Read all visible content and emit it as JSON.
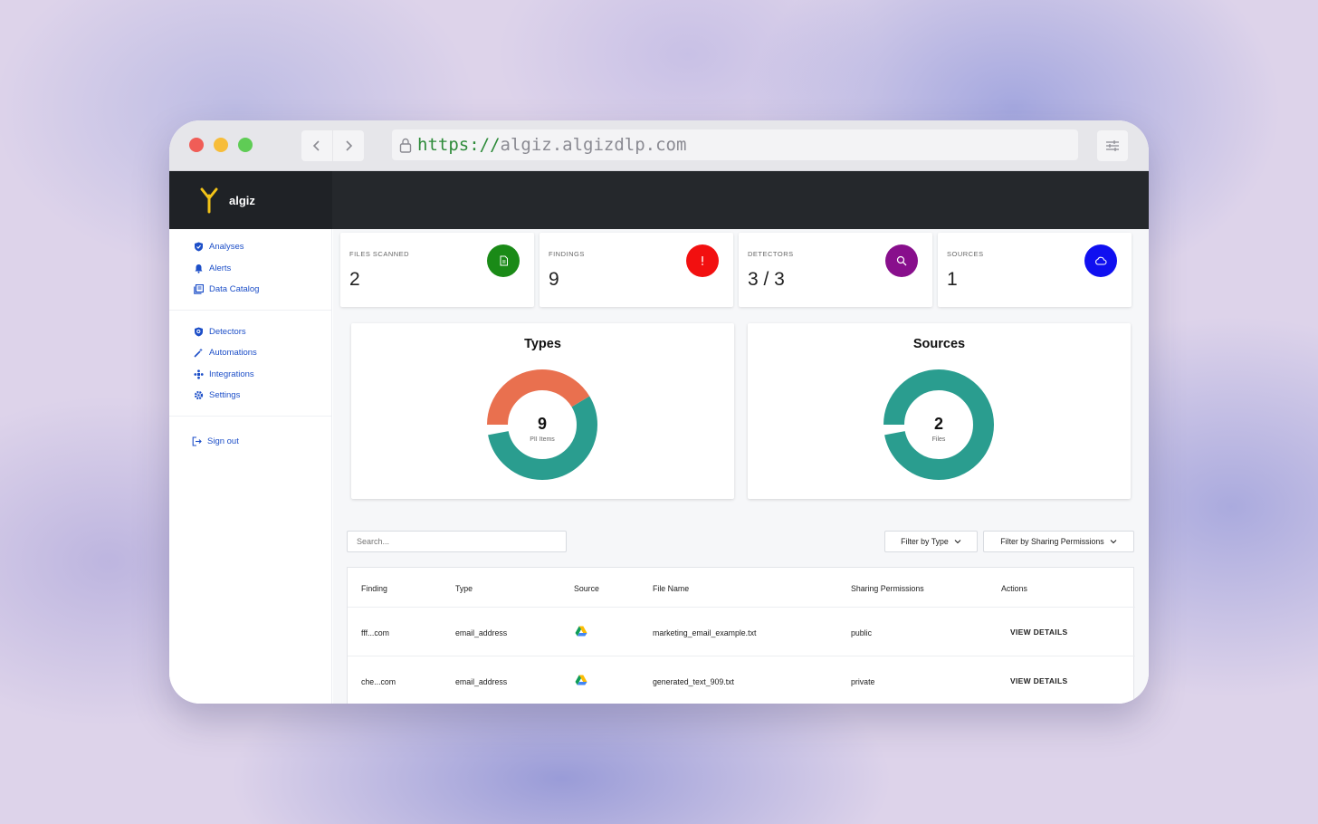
{
  "browser": {
    "url_protocol": "https://",
    "url_host": "algiz.algizdlp.com"
  },
  "brand": {
    "name": "algiz"
  },
  "sidebar": {
    "primary": [
      {
        "label": "Analyses",
        "icon": "shield-icon"
      },
      {
        "label": "Alerts",
        "icon": "bell-icon"
      },
      {
        "label": "Data Catalog",
        "icon": "catalog-icon"
      }
    ],
    "secondary": [
      {
        "label": "Detectors",
        "icon": "shield-search-icon"
      },
      {
        "label": "Automations",
        "icon": "magic-wand-icon"
      },
      {
        "label": "Integrations",
        "icon": "integrations-icon"
      },
      {
        "label": "Settings",
        "icon": "gear-icon"
      }
    ],
    "sign_out": {
      "label": "Sign out",
      "icon": "sign-out-icon"
    }
  },
  "stats": [
    {
      "label": "FILES SCANNED",
      "value": "2",
      "icon": "document-icon",
      "color": "#1a8a17"
    },
    {
      "label": "FINDINGS",
      "value": "9",
      "icon": "exclamation-icon",
      "color": "#f21010"
    },
    {
      "label": "DETECTORS",
      "value": "3 / 3",
      "icon": "search-icon",
      "color": "#880f8c"
    },
    {
      "label": "SOURCES",
      "value": "1",
      "icon": "cloud-icon",
      "color": "#1010f0"
    }
  ],
  "charts": {
    "types": {
      "title": "Types",
      "center_value": "9",
      "center_label": "PII Items",
      "segments": [
        {
          "value": 5,
          "color": "#2a9d8f"
        },
        {
          "value": 4,
          "color": "#e9704f"
        }
      ]
    },
    "sources": {
      "title": "Sources",
      "center_value": "2",
      "center_label": "Files",
      "segments": [
        {
          "value": 2,
          "color": "#2a9d8f"
        }
      ]
    }
  },
  "toolbar": {
    "search_placeholder": "Search...",
    "filter_type": "Filter by Type",
    "filter_sharing": "Filter by Sharing Permissions"
  },
  "table": {
    "headers": [
      "Finding",
      "Type",
      "Source",
      "File Name",
      "Sharing Permissions",
      "Actions"
    ],
    "rows": [
      {
        "finding": "fff...com",
        "type": "email_address",
        "source_icon": "google-drive-icon",
        "file_name": "marketing_email_example.txt",
        "sharing": "public",
        "action": "VIEW DETAILS"
      },
      {
        "finding": "che...com",
        "type": "email_address",
        "source_icon": "google-drive-icon",
        "file_name": "generated_text_909.txt",
        "sharing": "private",
        "action": "VIEW DETAILS"
      }
    ]
  }
}
